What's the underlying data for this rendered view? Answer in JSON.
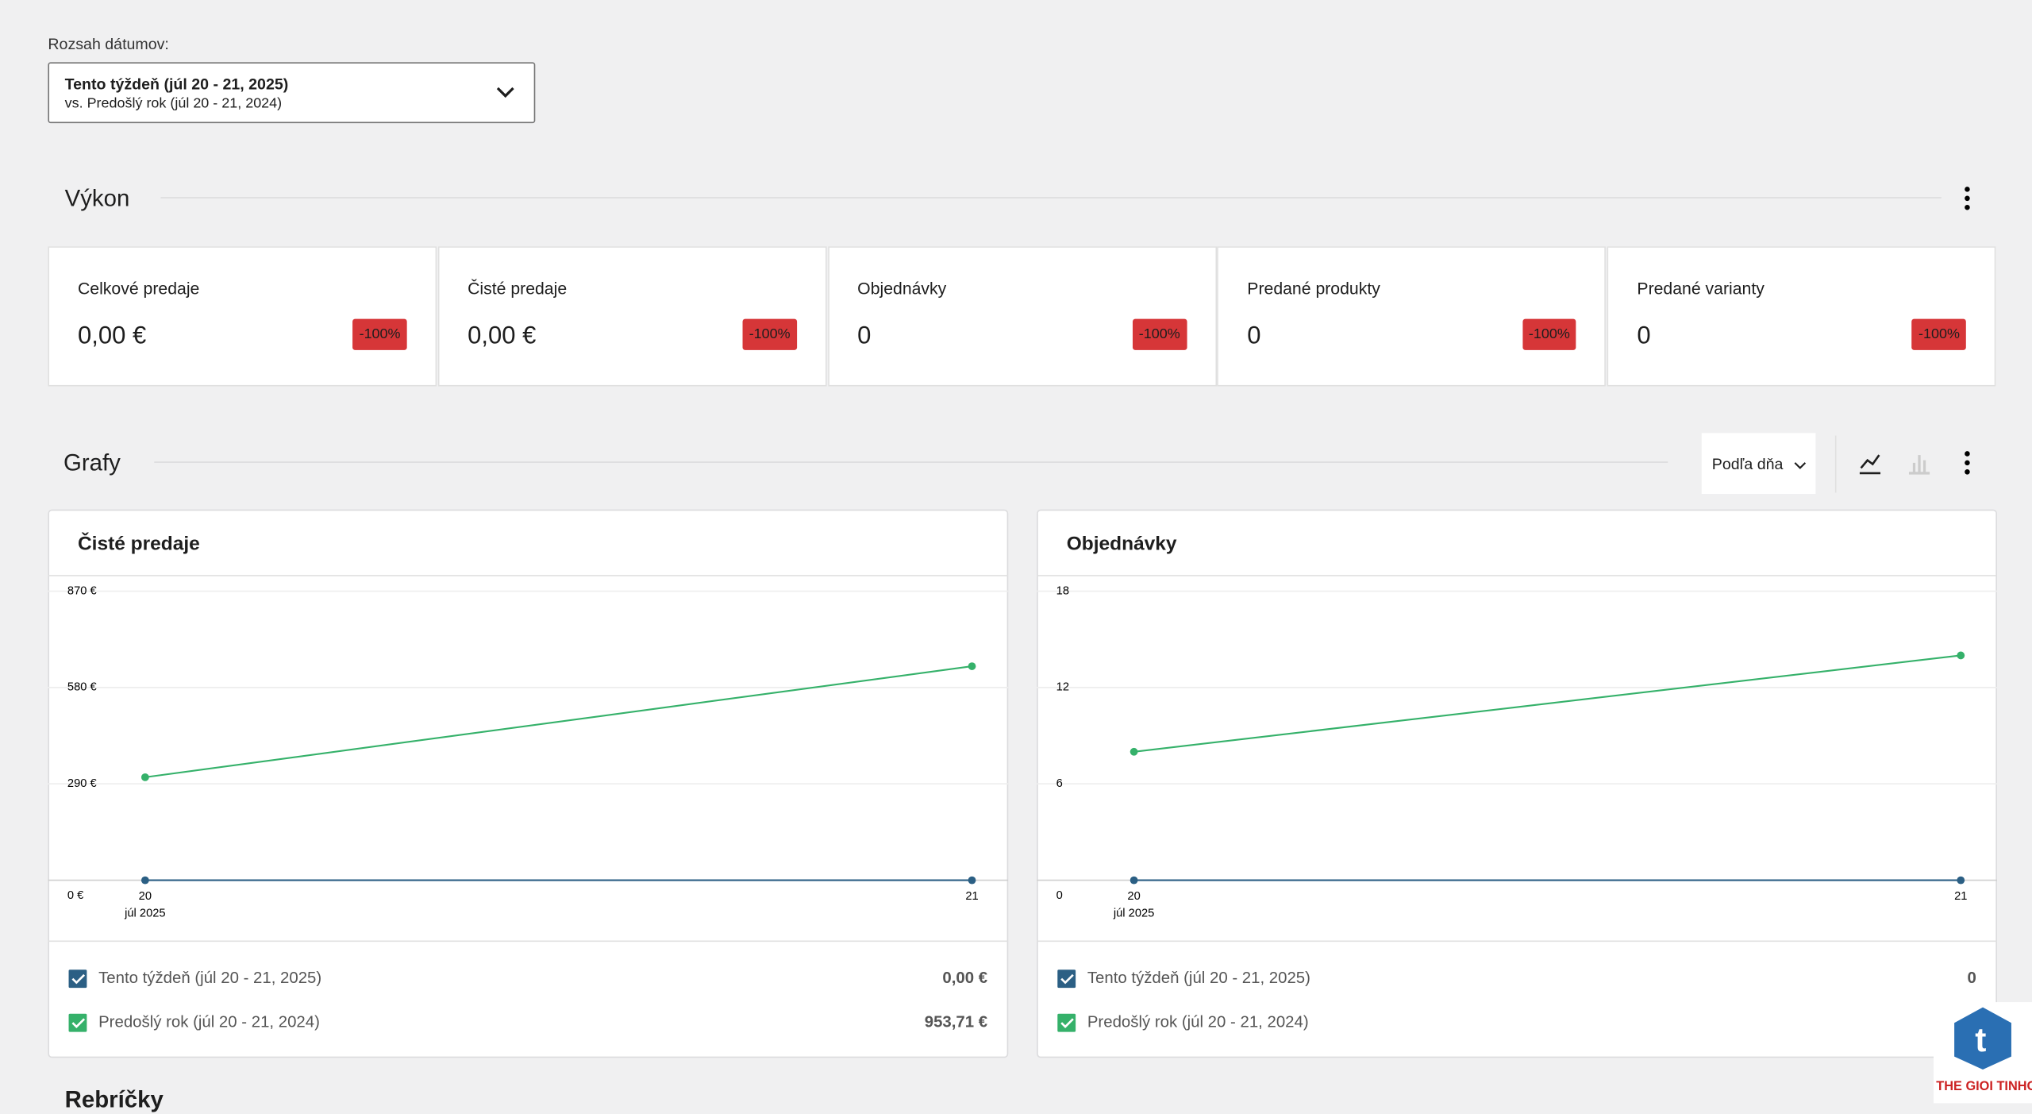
{
  "date_range": {
    "label": "Rozsah dátumov:",
    "primary": "Tento týždeň (júl 20 - 21, 2025)",
    "secondary": "vs. Predošlý rok (júl 20 - 21, 2024)"
  },
  "performance": {
    "title": "Výkon",
    "cards": [
      {
        "label": "Celkové predaje",
        "value": "0,00 €",
        "delta": "-100%"
      },
      {
        "label": "Čisté predaje",
        "value": "0,00 €",
        "delta": "-100%"
      },
      {
        "label": "Objednávky",
        "value": "0",
        "delta": "-100%"
      },
      {
        "label": "Predané produkty",
        "value": "0",
        "delta": "-100%"
      },
      {
        "label": "Predané varianty",
        "value": "0",
        "delta": "-100%"
      }
    ]
  },
  "charts_section": {
    "title": "Grafy",
    "interval": "Podľa dňa"
  },
  "charts": [
    {
      "type": "line",
      "title": "Čisté predaje",
      "categories": [
        "20",
        "21"
      ],
      "x_sublabel": "júl 2025",
      "ylim": [
        0,
        870
      ],
      "yticks": [
        {
          "value": 0,
          "label": "0 €"
        },
        {
          "value": 290,
          "label": "290 €"
        },
        {
          "value": 580,
          "label": "580 €"
        },
        {
          "value": 870,
          "label": "870 €"
        }
      ],
      "series": [
        {
          "name": "Tento týždeň (júl 20 - 21, 2025)",
          "color": "#2b5f84",
          "values": [
            0,
            0
          ],
          "total": "0,00 €"
        },
        {
          "name": "Predošlý rok (júl 20 - 21, 2024)",
          "color": "#35b16a",
          "values": [
            310,
            644
          ],
          "total": "953,71 €"
        }
      ]
    },
    {
      "type": "line",
      "title": "Objednávky",
      "categories": [
        "20",
        "21"
      ],
      "x_sublabel": "júl 2025",
      "ylim": [
        0,
        18
      ],
      "yticks": [
        0,
        6,
        12,
        18
      ],
      "series": [
        {
          "name": "Tento týždeň (júl 20 - 21, 2025)",
          "color": "#2b5f84",
          "values": [
            0,
            0
          ],
          "total": "0"
        },
        {
          "name": "Predošlý rok (júl 20 - 21, 2024)",
          "color": "#35b16a",
          "values": [
            8,
            14
          ]
        }
      ]
    }
  ],
  "next_section": {
    "title": "Rebríčky"
  },
  "watermark": "THE GIOI TINHOC"
}
